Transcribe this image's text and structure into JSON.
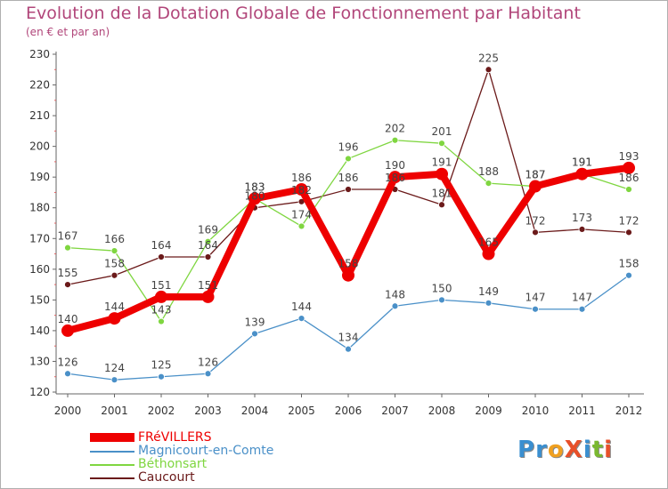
{
  "title": "Evolution de la Dotation Globale de Fonctionnement par Habitant",
  "subtitle": "(en € et par an)",
  "logo": {
    "text": "ProXiti",
    "letters": [
      "P",
      "r",
      "o",
      "X",
      "i",
      "t",
      "i"
    ],
    "colors": [
      "#3a8fd0",
      "#3a8fd0",
      "#f0a020",
      "#e8502a",
      "#3a8fd0",
      "#7ab830",
      "#e8502a"
    ]
  },
  "chart_data": {
    "type": "line",
    "title": "Evolution de la Dotation Globale de Fonctionnement par Habitant",
    "subtitle": "(en € et par an)",
    "x": [
      "2000",
      "2001",
      "2002",
      "2003",
      "2004",
      "2005",
      "2006",
      "2007",
      "2008",
      "2009",
      "2010",
      "2011",
      "2012"
    ],
    "ylim": [
      120,
      230
    ],
    "yticks": [
      120,
      130,
      140,
      150,
      160,
      170,
      180,
      190,
      200,
      210,
      220,
      230
    ],
    "grid": false,
    "legend_position": "bottom-left",
    "series": [
      {
        "name": "Caucourt",
        "color": "#6b1a1a",
        "values": [
          155,
          158,
          164,
          164,
          180,
          182,
          186,
          186,
          181,
          225,
          172,
          173,
          172
        ]
      },
      {
        "name": "Béthonsart",
        "color": "#7fd640",
        "values": [
          167,
          166,
          143,
          169,
          183,
          174,
          196,
          202,
          201,
          188,
          187,
          191,
          186
        ]
      },
      {
        "name": "Magnicourt-en-Comte",
        "color": "#4a90c8",
        "values": [
          126,
          124,
          125,
          126,
          139,
          144,
          134,
          148,
          150,
          149,
          147,
          147,
          158
        ]
      },
      {
        "name": "FRéVILLERS",
        "color": "#ee0000",
        "values": [
          140,
          144,
          151,
          151,
          183,
          186,
          158,
          190,
          191,
          165,
          187,
          191,
          193
        ]
      }
    ],
    "legend": [
      {
        "name": "FRéVILLERS",
        "color": "#ee0000"
      },
      {
        "name": "Magnicourt-en-Comte",
        "color": "#4a90c8"
      },
      {
        "name": "Béthonsart",
        "color": "#7fd640"
      },
      {
        "name": "Caucourt",
        "color": "#6b1a1a"
      }
    ]
  }
}
